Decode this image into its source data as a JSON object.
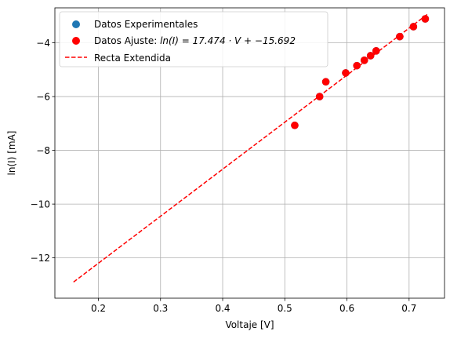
{
  "chart_data": {
    "type": "scatter",
    "xlabel": "Voltaje [V]",
    "ylabel": "ln(I) [mA]",
    "xlim": [
      0.13,
      0.757
    ],
    "ylim": [
      -13.5,
      -2.7
    ],
    "xticks": [
      0.2,
      0.3,
      0.4,
      0.5,
      0.6,
      0.7
    ],
    "xtick_labels": [
      "0.2",
      "0.3",
      "0.4",
      "0.5",
      "0.6",
      "0.7"
    ],
    "yticks": [
      -12,
      -10,
      -8,
      -6,
      -4
    ],
    "ytick_labels": [
      "−12",
      "−10",
      "−8",
      "−6",
      "−4"
    ],
    "grid": true,
    "legend_position": "upper-left",
    "series": [
      {
        "name": "Datos Experimentales",
        "kind": "scatter",
        "color": "#1f77b4",
        "x": [
          0.516,
          0.556,
          0.566,
          0.598,
          0.616,
          0.628,
          0.638,
          0.647,
          0.685,
          0.707,
          0.726
        ],
        "y": [
          -7.07,
          -6.0,
          -5.45,
          -5.12,
          -4.85,
          -4.65,
          -4.48,
          -4.3,
          -3.77,
          -3.4,
          -3.11
        ]
      },
      {
        "name": "Datos Ajuste: ln(I) = 17.474 · V + −15.692",
        "legend_prefix": "Datos Ajuste: ",
        "legend_formula": "ln(I) = 17.474 · V + −15.692",
        "kind": "scatter",
        "color": "#ff0000",
        "x": [
          0.516,
          0.556,
          0.566,
          0.598,
          0.616,
          0.628,
          0.638,
          0.647,
          0.685,
          0.707,
          0.726
        ],
        "y": [
          -7.07,
          -6.0,
          -5.45,
          -5.12,
          -4.85,
          -4.65,
          -4.48,
          -4.3,
          -3.77,
          -3.4,
          -3.11
        ]
      },
      {
        "name": "Recta Extendida",
        "kind": "dashed-line",
        "color": "#ff0000",
        "x": [
          0.16,
          0.73
        ],
        "y": [
          -12.9,
          -2.93
        ]
      }
    ]
  }
}
